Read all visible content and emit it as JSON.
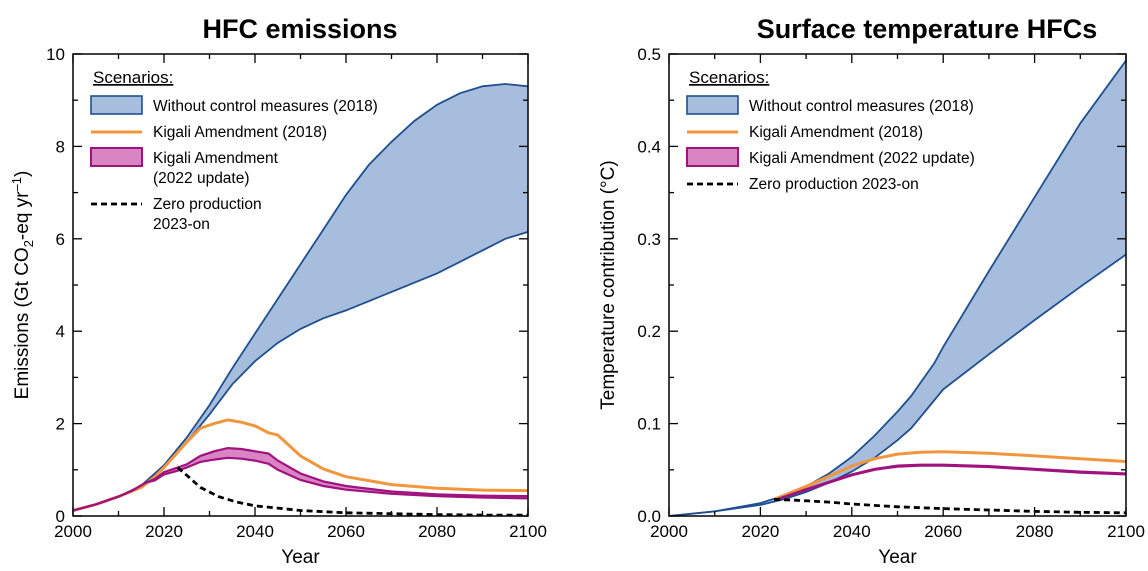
{
  "colors": {
    "blue_fill": "#a7bddd",
    "blue_line": "#1f4f8f",
    "orange": "#f0963c",
    "magenta_fill": "#d985c4",
    "magenta_line": "#a0137f",
    "black": "#000000"
  },
  "chart_data": [
    {
      "type": "area",
      "title": "HFC emissions",
      "xlabel": "Year",
      "ylabel": "Emissions (Gt CO",
      "ylabel_sub": "2",
      "ylabel_mid": "-eq yr",
      "ylabel_sup": "–1",
      "ylabel_end": ")",
      "xlim": [
        2000,
        2100
      ],
      "ylim": [
        0,
        10
      ],
      "xticks": [
        2000,
        2020,
        2040,
        2060,
        2080,
        2100
      ],
      "yticks": [
        0,
        2,
        4,
        6,
        8,
        10
      ],
      "ytick_labels": [
        "0",
        "2",
        "4",
        "6",
        "8",
        "10"
      ],
      "grid": false,
      "legend_placement": "top-left",
      "legend": {
        "title": "Scenarios:",
        "entries": [
          {
            "label": "Without control measures (2018)",
            "style": "band-blue"
          },
          {
            "label": "Kigali Amendment (2018)",
            "style": "line-orange"
          },
          {
            "label": "Kigali Amendment",
            "label2": "(2022 update)",
            "style": "band-magenta"
          },
          {
            "label": "Zero production",
            "label2": "2023-on",
            "style": "dash-black"
          }
        ]
      },
      "series": [
        {
          "name": "Without control measures (2018)",
          "kind": "band",
          "x": [
            2000,
            2005,
            2010,
            2015,
            2020,
            2025,
            2030,
            2035,
            2040,
            2045,
            2050,
            2055,
            2060,
            2065,
            2070,
            2075,
            2080,
            2085,
            2090,
            2095,
            2100
          ],
          "low": [
            0.12,
            0.25,
            0.42,
            0.65,
            1.05,
            1.6,
            2.2,
            2.85,
            3.35,
            3.75,
            4.05,
            4.28,
            4.45,
            4.65,
            4.85,
            5.05,
            5.25,
            5.5,
            5.75,
            6.0,
            6.15
          ],
          "high": [
            0.12,
            0.25,
            0.42,
            0.66,
            1.1,
            1.7,
            2.4,
            3.2,
            3.95,
            4.7,
            5.45,
            6.2,
            6.95,
            7.6,
            8.1,
            8.55,
            8.9,
            9.15,
            9.3,
            9.35,
            9.3
          ]
        },
        {
          "name": "Kigali Amendment (2018)",
          "kind": "line",
          "x": [
            2000,
            2005,
            2010,
            2015,
            2018,
            2020,
            2025,
            2028,
            2031,
            2034,
            2037,
            2040,
            2043,
            2045,
            2050,
            2055,
            2060,
            2070,
            2080,
            2090,
            2100
          ],
          "y": [
            0.12,
            0.25,
            0.42,
            0.62,
            0.85,
            1.05,
            1.6,
            1.9,
            2.0,
            2.08,
            2.03,
            1.95,
            1.8,
            1.75,
            1.3,
            1.02,
            0.85,
            0.68,
            0.6,
            0.56,
            0.55
          ]
        },
        {
          "name": "Kigali Amendment (2022 update)",
          "kind": "band",
          "x": [
            2000,
            2005,
            2010,
            2013,
            2016,
            2018,
            2020,
            2023,
            2025,
            2028,
            2031,
            2034,
            2037,
            2040,
            2043,
            2045,
            2050,
            2055,
            2060,
            2070,
            2080,
            2090,
            2100
          ],
          "low": [
            0.12,
            0.25,
            0.42,
            0.55,
            0.72,
            0.77,
            0.9,
            0.98,
            1.05,
            1.17,
            1.22,
            1.26,
            1.24,
            1.2,
            1.13,
            1.0,
            0.78,
            0.65,
            0.57,
            0.48,
            0.43,
            0.4,
            0.38
          ],
          "high": [
            0.12,
            0.25,
            0.42,
            0.55,
            0.72,
            0.8,
            0.95,
            1.05,
            1.12,
            1.3,
            1.4,
            1.47,
            1.45,
            1.4,
            1.35,
            1.2,
            0.92,
            0.75,
            0.65,
            0.53,
            0.47,
            0.44,
            0.43
          ]
        },
        {
          "name": "Zero production 2023-on",
          "kind": "dashed",
          "x": [
            2023,
            2025,
            2028,
            2032,
            2036,
            2040,
            2050,
            2060,
            2070,
            2080,
            2090,
            2100
          ],
          "y": [
            1.05,
            0.88,
            0.62,
            0.42,
            0.3,
            0.22,
            0.12,
            0.07,
            0.05,
            0.03,
            0.02,
            0.02
          ]
        }
      ]
    },
    {
      "type": "area",
      "title": "Surface temperature HFCs",
      "xlabel": "Year",
      "ylabel": "Temperature contribution (°C)",
      "xlim": [
        2000,
        2100
      ],
      "ylim": [
        0,
        0.5
      ],
      "xticks": [
        2000,
        2020,
        2040,
        2060,
        2080,
        2100
      ],
      "yticks": [
        0,
        0.1,
        0.2,
        0.3,
        0.4,
        0.5
      ],
      "ytick_labels": [
        "0.0",
        "0.1",
        "0.2",
        "0.3",
        "0.4",
        "0.5"
      ],
      "grid": false,
      "legend_placement": "top-left",
      "legend": {
        "title": "Scenarios:",
        "entries": [
          {
            "label": "Without control measures (2018)",
            "style": "band-blue"
          },
          {
            "label": "Kigali Amendment (2018)",
            "style": "line-orange"
          },
          {
            "label": "Kigali Amendment (2022 update)",
            "style": "band-magenta"
          },
          {
            "label": "Zero production 2023-on",
            "style": "dash-black"
          }
        ]
      },
      "series": [
        {
          "name": "Without control measures (2018)",
          "kind": "band",
          "x": [
            2000,
            2010,
            2020,
            2025,
            2030,
            2035,
            2040,
            2045,
            2050,
            2053,
            2058,
            2060,
            2070,
            2080,
            2090,
            2100
          ],
          "low": [
            0.0,
            0.005,
            0.012,
            0.018,
            0.026,
            0.036,
            0.048,
            0.063,
            0.082,
            0.095,
            0.125,
            0.137,
            0.175,
            0.212,
            0.248,
            0.283
          ],
          "high": [
            0.0,
            0.005,
            0.014,
            0.022,
            0.032,
            0.046,
            0.064,
            0.087,
            0.113,
            0.13,
            0.165,
            0.183,
            0.265,
            0.345,
            0.425,
            0.493
          ]
        },
        {
          "name": "Kigali Amendment (2018)",
          "kind": "line",
          "x": [
            2023,
            2030,
            2035,
            2040,
            2045,
            2050,
            2055,
            2060,
            2070,
            2080,
            2090,
            2100
          ],
          "y": [
            0.018,
            0.032,
            0.043,
            0.054,
            0.062,
            0.067,
            0.069,
            0.0695,
            0.068,
            0.065,
            0.062,
            0.059
          ]
        },
        {
          "name": "Kigali Amendment (2022 update)",
          "kind": "band",
          "x": [
            2023,
            2030,
            2035,
            2040,
            2045,
            2050,
            2055,
            2060,
            2070,
            2080,
            2090,
            2100
          ],
          "low": [
            0.017,
            0.028,
            0.036,
            0.044,
            0.05,
            0.0535,
            0.0545,
            0.0545,
            0.053,
            0.05,
            0.047,
            0.045
          ],
          "high": [
            0.017,
            0.029,
            0.037,
            0.045,
            0.051,
            0.0545,
            0.0555,
            0.0555,
            0.054,
            0.051,
            0.048,
            0.046
          ]
        },
        {
          "name": "Zero production 2023-on",
          "kind": "dashed",
          "x": [
            2023,
            2028,
            2035,
            2040,
            2050,
            2060,
            2070,
            2080,
            2090,
            2100
          ],
          "y": [
            0.018,
            0.017,
            0.015,
            0.013,
            0.01,
            0.008,
            0.0065,
            0.005,
            0.004,
            0.0035
          ]
        }
      ]
    }
  ]
}
